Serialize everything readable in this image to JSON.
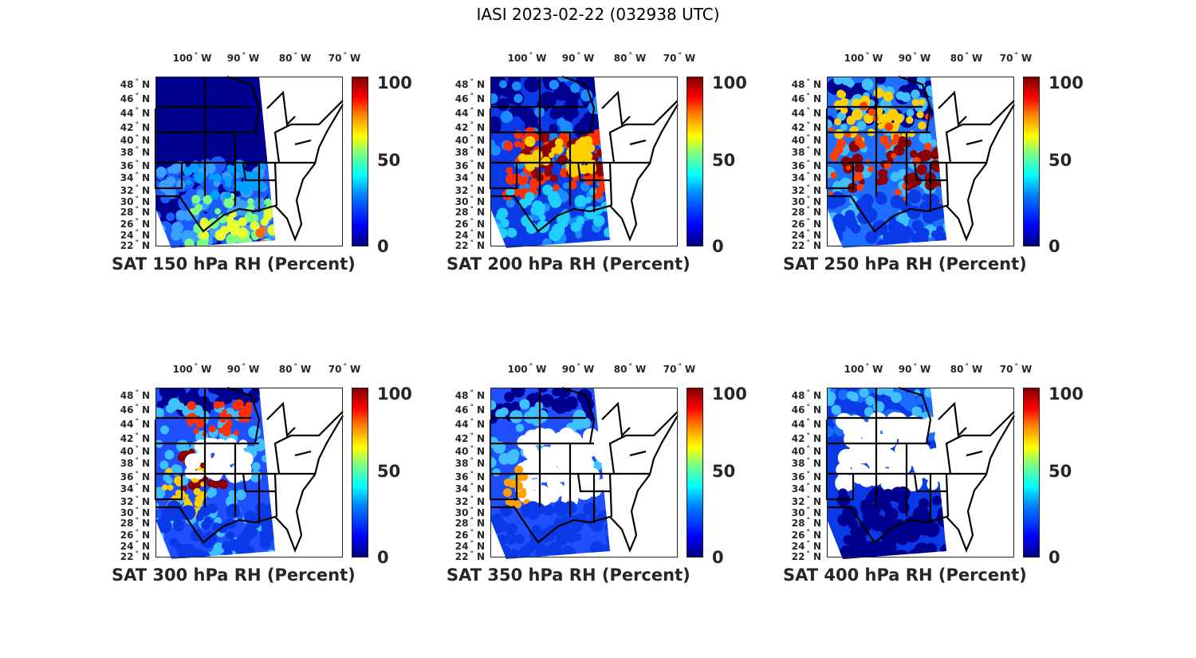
{
  "figure_title": "IASI 2023-02-22 (032938 UTC)",
  "lon_labels": [
    {
      "num": "100",
      "dir": "W"
    },
    {
      "num": "90",
      "dir": "W"
    },
    {
      "num": "80",
      "dir": "W"
    },
    {
      "num": "70",
      "dir": "W"
    }
  ],
  "lat_labels": [
    {
      "num": "48",
      "dir": "N"
    },
    {
      "num": "46",
      "dir": "N"
    },
    {
      "num": "44",
      "dir": "N"
    },
    {
      "num": "42",
      "dir": "N"
    },
    {
      "num": "40",
      "dir": "N"
    },
    {
      "num": "38",
      "dir": "N"
    },
    {
      "num": "36",
      "dir": "N"
    },
    {
      "num": "34",
      "dir": "N"
    },
    {
      "num": "32",
      "dir": "N"
    },
    {
      "num": "30",
      "dir": "N"
    },
    {
      "num": "28",
      "dir": "N"
    },
    {
      "num": "26",
      "dir": "N"
    },
    {
      "num": "24",
      "dir": "N"
    },
    {
      "num": "22",
      "dir": "N"
    }
  ],
  "colorbar": {
    "ticks": [
      "100",
      "50",
      "0"
    ],
    "colormap": "jet",
    "range": [
      0,
      100
    ]
  },
  "panels": [
    {
      "title": "SAT 150 hPa RH (Percent)",
      "pressure_hpa": 150
    },
    {
      "title": "SAT 200 hPa RH (Percent)",
      "pressure_hpa": 200
    },
    {
      "title": "SAT 250 hPa RH (Percent)",
      "pressure_hpa": 250
    },
    {
      "title": "SAT 300 hPa RH (Percent)",
      "pressure_hpa": 300
    },
    {
      "title": "SAT 350 hPa RH (Percent)",
      "pressure_hpa": 350
    },
    {
      "title": "SAT 400 hPa RH (Percent)",
      "pressure_hpa": 400
    }
  ]
}
